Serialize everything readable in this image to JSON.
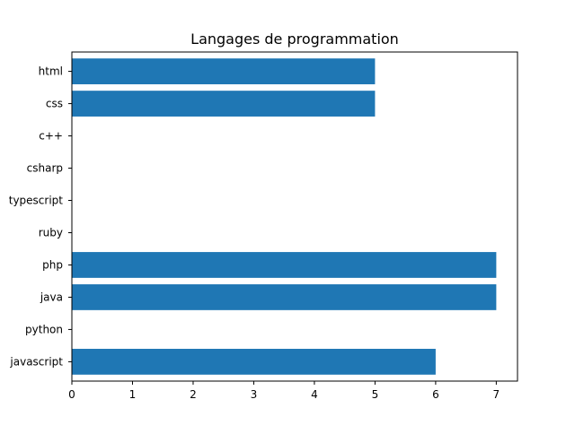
{
  "chart_data": {
    "type": "bar",
    "orientation": "horizontal",
    "title": "Langages de programmation",
    "xlabel": "",
    "ylabel": "",
    "categories": [
      "javascript",
      "python",
      "java",
      "php",
      "ruby",
      "typescript",
      "csharp",
      "c++",
      "css",
      "html"
    ],
    "values": [
      6,
      0,
      7,
      7,
      0,
      0,
      0,
      0,
      5,
      5
    ],
    "xlim": [
      0,
      7.35
    ],
    "xticks": [
      0,
      1,
      2,
      3,
      4,
      5,
      6,
      7
    ],
    "grid": false,
    "legend": false,
    "bar_color": "#1f77b4"
  }
}
